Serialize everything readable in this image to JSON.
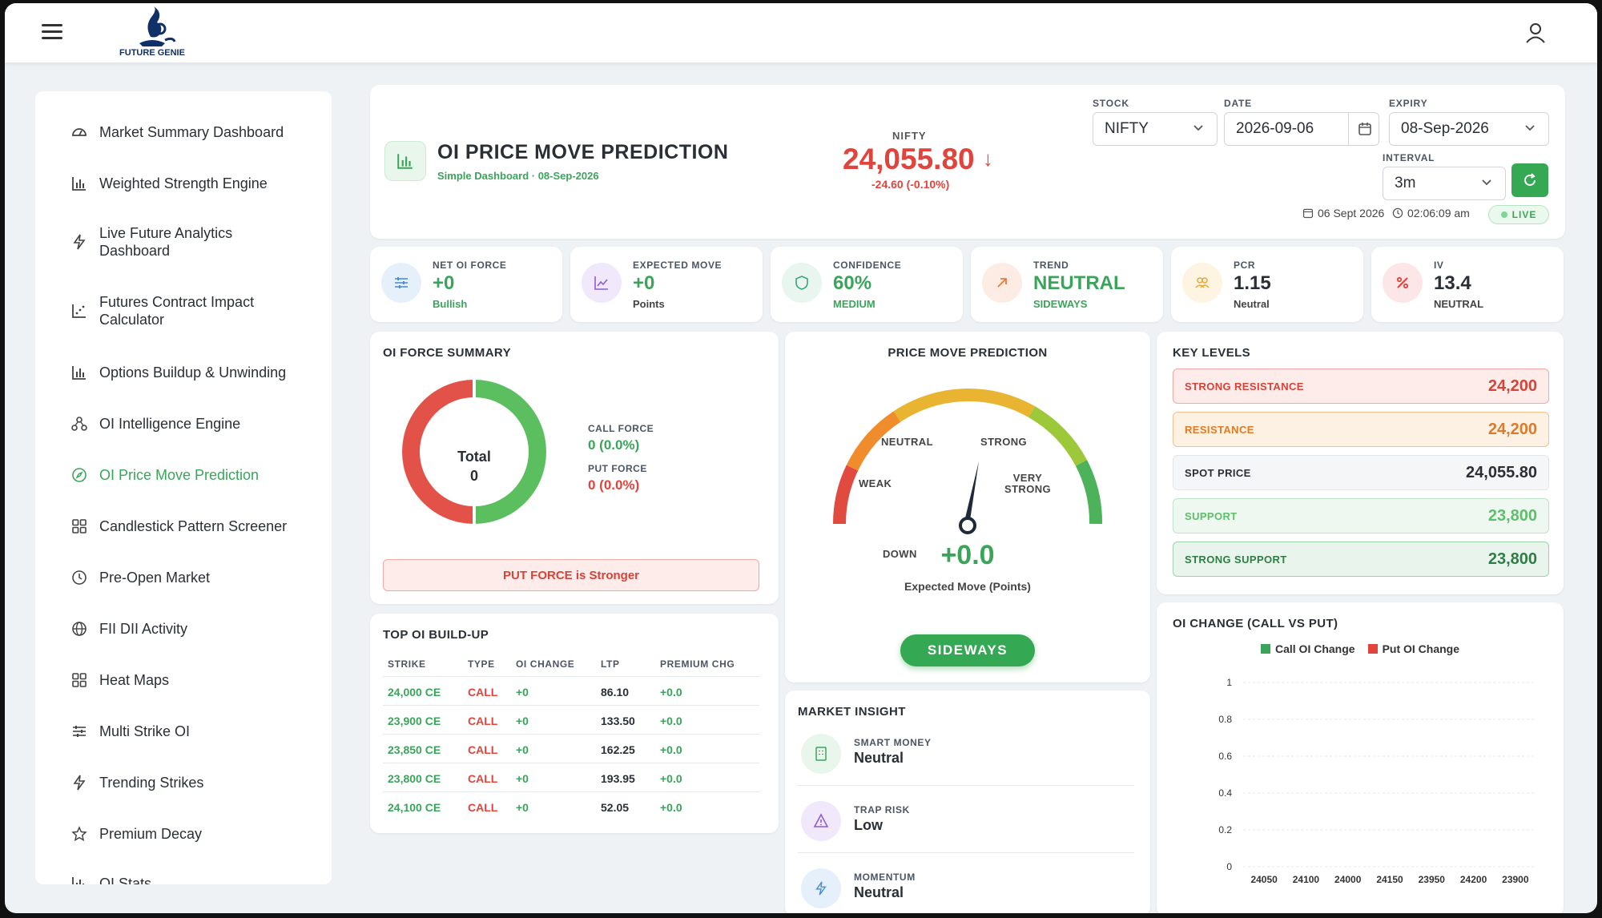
{
  "app": {
    "logo_text": "FUTURE GENIE"
  },
  "sidebar": {
    "items": [
      {
        "label": "Market Summary Dashboard",
        "icon": "dashboard-icon"
      },
      {
        "label": "Weighted Strength Engine",
        "icon": "bar-chart-icon"
      },
      {
        "label": "Live Future Analytics",
        "label2": "Dashboard",
        "icon": "bolt-icon"
      },
      {
        "label": "Futures Contract Impact",
        "label2": "Calculator",
        "icon": "scatter-chart-icon"
      },
      {
        "label": "Options Buildup & Unwinding",
        "icon": "bar-chart-icon"
      },
      {
        "label": "OI Intelligence Engine",
        "icon": "network-icon"
      },
      {
        "label": "OI Price Move Prediction",
        "icon": "compass-icon"
      },
      {
        "label": "Candlestick Pattern Screener",
        "icon": "grid-icon"
      },
      {
        "label": "Pre-Open Market",
        "icon": "clock-icon"
      },
      {
        "label": "FII DII Activity",
        "icon": "globe-icon"
      },
      {
        "label": "Heat Maps",
        "icon": "grid-icon"
      },
      {
        "label": "Multi Strike OI",
        "icon": "sliders-icon"
      },
      {
        "label": "Trending Strikes",
        "icon": "bolt-icon"
      },
      {
        "label": "Premium Decay",
        "icon": "star-icon"
      },
      {
        "label": "OI Stats",
        "icon": "bar-chart-icon"
      }
    ]
  },
  "header": {
    "title": "OI PRICE MOVE PREDICTION",
    "subtitle": "Simple Dashboard · 08-Sep-2026",
    "index_label": "NIFTY",
    "price": "24,055.80",
    "change": "-24.60 (-0.10%)",
    "stock_label": "STOCK",
    "stock_value": "NIFTY",
    "date_label": "DATE",
    "date_value": "2026-09-06",
    "expiry_label": "EXPIRY",
    "expiry_value": "08-Sep-2026",
    "interval_label": "INTERVAL",
    "interval_value": "3m",
    "date_stamp": "06 Sept 2026",
    "time_stamp": "02:06:09 am",
    "live": "LIVE"
  },
  "stats": [
    {
      "label": "NET OI FORCE",
      "value": "+0",
      "sub": "Bullish",
      "icon": "sliders-icon"
    },
    {
      "label": "EXPECTED MOVE",
      "value": "+0",
      "sub": "Points",
      "icon": "trend-chart-icon"
    },
    {
      "label": "CONFIDENCE",
      "value": "60%",
      "sub": "MEDIUM",
      "icon": "shield-icon"
    },
    {
      "label": "TREND",
      "value": "NEUTRAL",
      "sub": "SIDEWAYS",
      "icon": "arrow-up-right-icon"
    },
    {
      "label": "PCR",
      "value": "1.15",
      "sub": "Neutral",
      "icon": "users-icon"
    },
    {
      "label": "IV",
      "value": "13.4",
      "sub": "NEUTRAL",
      "icon": "percent-icon"
    }
  ],
  "oi_force": {
    "title": "OI FORCE SUMMARY",
    "total_label": "Total",
    "total_value": "0",
    "call_label": "CALL FORCE",
    "call_value": "0 (0.0%)",
    "put_label": "PUT FORCE",
    "put_value": "0 (0.0%)",
    "banner": "PUT FORCE is Stronger"
  },
  "top_oi": {
    "title": "TOP OI BUILD-UP",
    "headers": [
      "STRIKE",
      "TYPE",
      "OI CHANGE",
      "LTP",
      "PREMIUM CHG"
    ],
    "rows": [
      [
        "24,000 CE",
        "CALL",
        "+0",
        "86.10",
        "+0.0"
      ],
      [
        "23,900 CE",
        "CALL",
        "+0",
        "133.50",
        "+0.0"
      ],
      [
        "23,850 CE",
        "CALL",
        "+0",
        "162.25",
        "+0.0"
      ],
      [
        "23,800 CE",
        "CALL",
        "+0",
        "193.95",
        "+0.0"
      ],
      [
        "24,100 CE",
        "CALL",
        "+0",
        "52.05",
        "+0.0"
      ]
    ]
  },
  "prediction": {
    "title": "PRICE MOVE PREDICTION",
    "labels": {
      "down": "DOWN",
      "weak": "WEAK",
      "neutral": "NEUTRAL",
      "strong": "STRONG",
      "very": "VERY",
      "very2": "STRONG"
    },
    "value": "+0.0",
    "caption": "Expected Move (Points)",
    "badge": "SIDEWAYS"
  },
  "insight": {
    "title": "MARKET INSIGHT",
    "rows": [
      {
        "label": "SMART MONEY",
        "value": "Neutral",
        "icon": "building-icon"
      },
      {
        "label": "TRAP RISK",
        "value": "Low",
        "icon": "warning-icon"
      },
      {
        "label": "MOMENTUM",
        "value": "Neutral",
        "icon": "bolt-icon"
      }
    ]
  },
  "key_levels": {
    "title": "KEY LEVELS",
    "rows": [
      {
        "label": "STRONG RESISTANCE",
        "value": "24,200"
      },
      {
        "label": "RESISTANCE",
        "value": "24,200"
      },
      {
        "label": "SPOT PRICE",
        "value": "24,055.80"
      },
      {
        "label": "SUPPORT",
        "value": "23,800"
      },
      {
        "label": "STRONG SUPPORT",
        "value": "23,800"
      }
    ]
  },
  "colors": {
    "green": "#34a853",
    "red": "#e0443c",
    "orange": "#f08c2b"
  },
  "chart_data": {
    "type": "bar",
    "title": "OI CHANGE (CALL VS PUT)",
    "categories": [
      "24050",
      "24100",
      "24000",
      "24150",
      "23950",
      "24200",
      "23900"
    ],
    "series": [
      {
        "name": "Call OI Change",
        "values": [
          0,
          0,
          0,
          0,
          0,
          0,
          0
        ],
        "color": "#3aa55a"
      },
      {
        "name": "Put OI Change",
        "values": [
          0,
          0,
          0,
          0,
          0,
          0,
          0
        ],
        "color": "#e0443c"
      }
    ],
    "ylim": [
      0,
      1
    ],
    "yticks": [
      "0",
      "0.2",
      "0.4",
      "0.6",
      "0.8",
      "1"
    ],
    "grid": true,
    "legend": "top"
  }
}
